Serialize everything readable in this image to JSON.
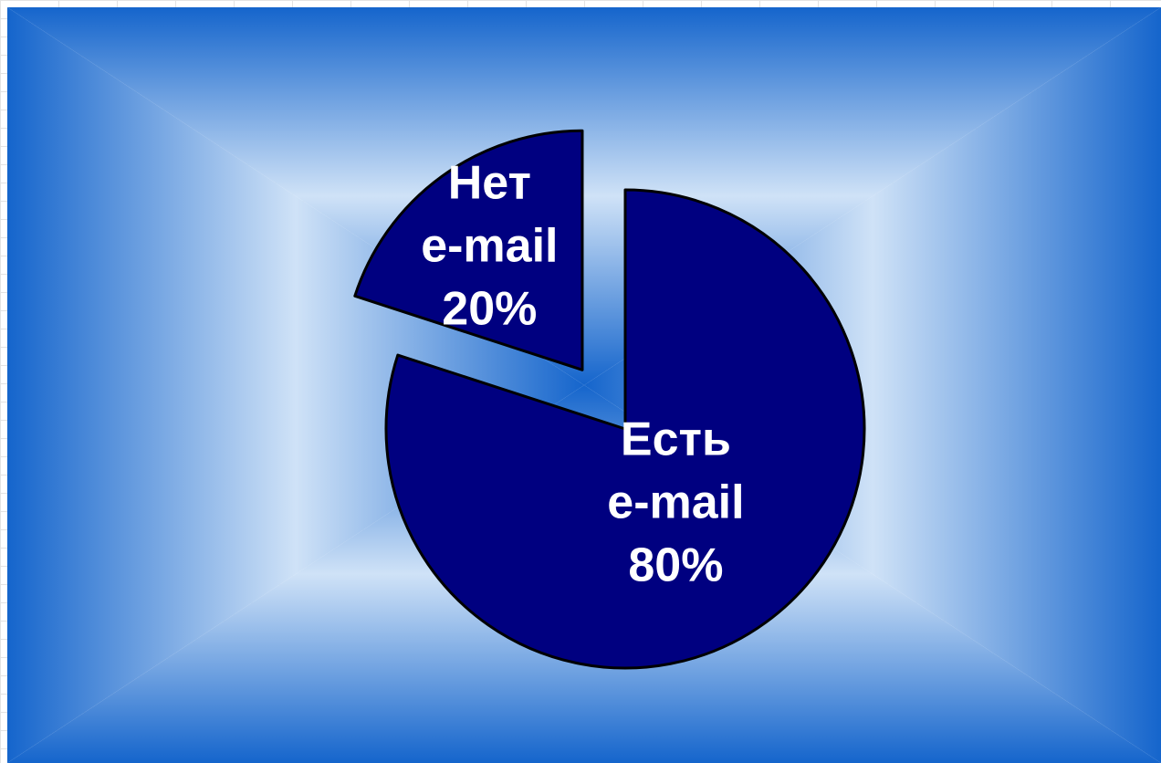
{
  "chart_data": {
    "type": "pie",
    "title": "",
    "exploded": true,
    "slices": [
      {
        "label_line1": "Есть",
        "label_line2": "e-mail",
        "percent_label": "80%",
        "value": 80,
        "color": "#000080"
      },
      {
        "label_line1": "Нет",
        "label_line2": "e-mail",
        "percent_label": "20%",
        "value": 20,
        "color": "#000080"
      }
    ],
    "legend": "none"
  },
  "style": {
    "background_center": "#cfe2f7",
    "background_edge": "#1565cc",
    "slice_outline": "#000000",
    "label_color": "#ffffff"
  }
}
